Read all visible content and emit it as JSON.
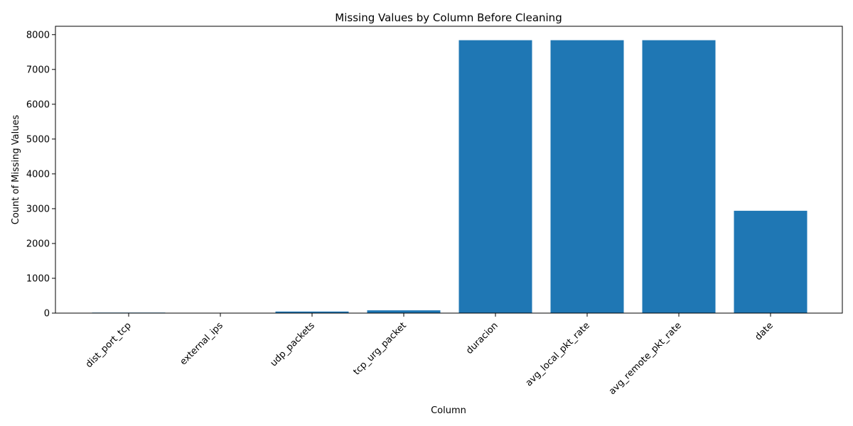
{
  "chart_data": {
    "type": "bar",
    "title": "Missing Values by Column Before Cleaning",
    "xlabel": "Column",
    "ylabel": "Count of Missing Values",
    "categories": [
      "dist_port_tcp",
      "external_ips",
      "udp_packets",
      "tcp_urg_packet",
      "duracion",
      "avg_local_pkt_rate",
      "avg_remote_pkt_rate",
      "date"
    ],
    "values": [
      15,
      4,
      45,
      80,
      7840,
      7840,
      7840,
      2940
    ],
    "ylim": [
      0,
      8240
    ],
    "yticks": [
      0,
      1000,
      2000,
      3000,
      4000,
      5000,
      6000,
      7000,
      8000
    ],
    "bar_color": "#1f77b4",
    "grid": false,
    "legend": "none"
  }
}
